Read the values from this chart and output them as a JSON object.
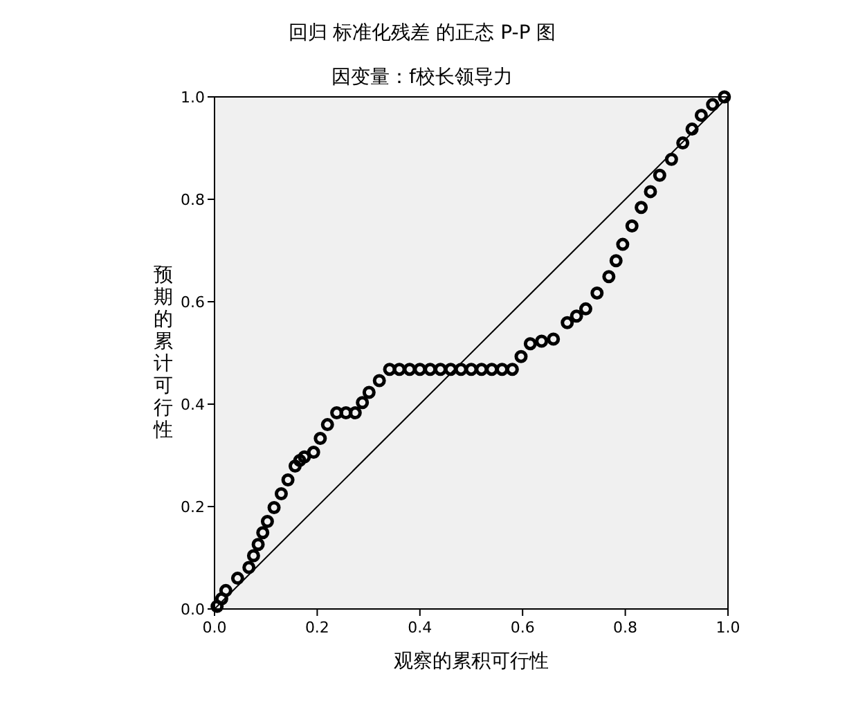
{
  "chart_data": {
    "type": "scatter",
    "title": "回归 标准化残差 的正态 P-P 图",
    "subtitle": "因变量：f校长领导力",
    "xlabel": "观察的累积可行性",
    "ylabel": "预期的累计可行性",
    "xlim": [
      0,
      1
    ],
    "ylim": [
      0,
      1
    ],
    "xticks": [
      {
        "value": 0,
        "label": "0.0"
      },
      {
        "value": 0.2,
        "label": "0.2"
      },
      {
        "value": 0.4,
        "label": "0.4"
      },
      {
        "value": 0.6,
        "label": "0.6"
      },
      {
        "value": 0.8,
        "label": "0.8"
      },
      {
        "value": 1,
        "label": "1.0"
      }
    ],
    "yticks": [
      {
        "value": 0,
        "label": "0.0"
      },
      {
        "value": 0.2,
        "label": "0.2"
      },
      {
        "value": 0.4,
        "label": "0.4"
      },
      {
        "value": 0.6,
        "label": "0.6"
      },
      {
        "value": 0.8,
        "label": "0.8"
      },
      {
        "value": 1,
        "label": "1.0"
      }
    ],
    "grid": false,
    "series": [
      {
        "color": "#000000",
        "marker": "circle",
        "x": [
          0.005,
          0.014,
          0.022,
          0.045,
          0.067,
          0.076,
          0.085,
          0.094,
          0.103,
          0.116,
          0.13,
          0.143,
          0.157,
          0.166,
          0.175,
          0.193,
          0.206,
          0.22,
          0.238,
          0.256,
          0.274,
          0.288,
          0.301,
          0.321,
          0.341,
          0.36,
          0.38,
          0.4,
          0.42,
          0.44,
          0.46,
          0.48,
          0.5,
          0.52,
          0.54,
          0.56,
          0.58,
          0.597,
          0.615,
          0.637,
          0.66,
          0.687,
          0.705,
          0.723,
          0.745,
          0.768,
          0.782,
          0.795,
          0.813,
          0.831,
          0.849,
          0.867,
          0.89,
          0.912,
          0.93,
          0.948,
          0.97,
          0.993
        ],
        "values": [
          0.005,
          0.02,
          0.036,
          0.06,
          0.081,
          0.104,
          0.126,
          0.149,
          0.171,
          0.198,
          0.225,
          0.252,
          0.279,
          0.29,
          0.297,
          0.306,
          0.333,
          0.36,
          0.383,
          0.383,
          0.383,
          0.403,
          0.423,
          0.446,
          0.468,
          0.468,
          0.468,
          0.468,
          0.468,
          0.468,
          0.468,
          0.468,
          0.468,
          0.468,
          0.468,
          0.468,
          0.468,
          0.493,
          0.518,
          0.523,
          0.527,
          0.559,
          0.572,
          0.586,
          0.617,
          0.649,
          0.68,
          0.712,
          0.748,
          0.784,
          0.815,
          0.847,
          0.878,
          0.91,
          0.937,
          0.964,
          0.985,
          1.0
        ]
      },
      {
        "type": "line",
        "color": "#000000",
        "x": [
          0,
          1
        ],
        "values": [
          0,
          1
        ]
      }
    ]
  }
}
